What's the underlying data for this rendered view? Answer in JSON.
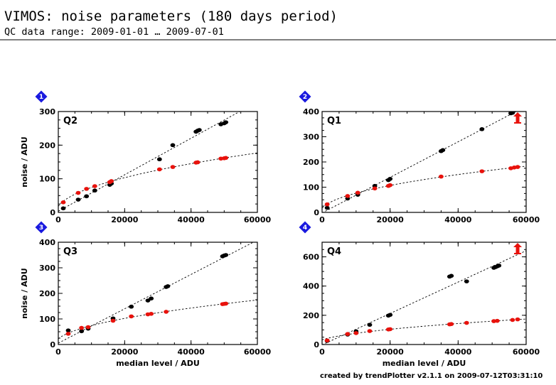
{
  "header": {
    "title": "VIMOS: noise parameters (180 days period)",
    "subtitle": "QC data range: 2009-01-01 … 2009-07-01"
  },
  "footer": "created by trendPlotter v2.1.1 on 2009-07-12T03:31:10",
  "colors": {
    "series_black": "#000000",
    "series_red": "#e8120c",
    "badge": "#1a1adf",
    "fit_line": "#000000"
  },
  "chart_data": [
    {
      "type": "scatter",
      "badge": "1",
      "panel_label": "Q2",
      "xlim": [
        0,
        60000
      ],
      "ylim": [
        0,
        300
      ],
      "xticks": [
        "0",
        "20000",
        "40000",
        "60000"
      ],
      "yticks": [
        "0",
        "100",
        "200",
        "300"
      ],
      "xlabel": "",
      "ylabel": "noise / ADU",
      "series": [
        {
          "color": "black",
          "points": [
            [
              1500,
              12
            ],
            [
              6000,
              38
            ],
            [
              8500,
              48
            ],
            [
              11000,
              65
            ],
            [
              15500,
              82
            ],
            [
              16000,
              86
            ],
            [
              30500,
              158
            ],
            [
              34500,
              200
            ],
            [
              41500,
              240
            ],
            [
              42000,
              243
            ],
            [
              42500,
              245
            ],
            [
              49000,
              262
            ],
            [
              50000,
              265
            ],
            [
              50500,
              268
            ]
          ]
        },
        {
          "color": "red",
          "points": [
            [
              1500,
              30
            ],
            [
              6000,
              58
            ],
            [
              8500,
              70
            ],
            [
              11000,
              78
            ],
            [
              15500,
              90
            ],
            [
              16000,
              93
            ],
            [
              30500,
              128
            ],
            [
              34500,
              135
            ],
            [
              41500,
              148
            ],
            [
              42000,
              149
            ],
            [
              49000,
              160
            ],
            [
              50000,
              161
            ],
            [
              50500,
              162
            ]
          ]
        }
      ]
    },
    {
      "type": "scatter",
      "badge": "2",
      "panel_label": "Q1",
      "xlim": [
        0,
        60000
      ],
      "ylim": [
        0,
        400
      ],
      "xticks": [
        "0",
        "20000",
        "40000",
        "60000"
      ],
      "yticks": [
        "0",
        "100",
        "200",
        "300",
        "400"
      ],
      "xlabel": "",
      "ylabel": "",
      "series": [
        {
          "color": "black",
          "points": [
            [
              1500,
              18
            ],
            [
              7500,
              55
            ],
            [
              10500,
              70
            ],
            [
              15500,
              105
            ],
            [
              19500,
              128
            ],
            [
              20000,
              133
            ],
            [
              35000,
              243
            ],
            [
              35500,
              247
            ],
            [
              47000,
              330
            ],
            [
              55500,
              393
            ],
            [
              56000,
              395
            ]
          ]
        },
        {
          "color": "red",
          "points": [
            [
              1500,
              32
            ],
            [
              7500,
              65
            ],
            [
              10500,
              78
            ],
            [
              15500,
              95
            ],
            [
              19500,
              105
            ],
            [
              20000,
              108
            ],
            [
              35000,
              142
            ],
            [
              47000,
              163
            ],
            [
              55500,
              175
            ],
            [
              56500,
              178
            ],
            [
              57500,
              180
            ]
          ]
        }
      ],
      "annotations": [
        {
          "type": "up-arrow",
          "x": 57500,
          "color": "red"
        }
      ]
    },
    {
      "type": "scatter",
      "badge": "3",
      "panel_label": "Q3",
      "xlim": [
        0,
        60000
      ],
      "ylim": [
        0,
        400
      ],
      "xticks": [
        "0",
        "20000",
        "40000",
        "60000"
      ],
      "yticks": [
        "0",
        "100",
        "200",
        "300",
        "400"
      ],
      "xlabel": "median level / ADU",
      "ylabel": "noise / ADU",
      "series": [
        {
          "color": "black",
          "points": [
            [
              3000,
              55
            ],
            [
              7000,
              52
            ],
            [
              9000,
              62
            ],
            [
              16500,
              102
            ],
            [
              22000,
              148
            ],
            [
              27000,
              172
            ],
            [
              28000,
              180
            ],
            [
              32500,
              225
            ],
            [
              33000,
              228
            ],
            [
              49500,
              345
            ],
            [
              50000,
              348
            ],
            [
              50500,
              350
            ]
          ]
        },
        {
          "color": "red",
          "points": [
            [
              3000,
              42
            ],
            [
              7000,
              65
            ],
            [
              9000,
              68
            ],
            [
              16500,
              93
            ],
            [
              22000,
              110
            ],
            [
              27000,
              118
            ],
            [
              28000,
              120
            ],
            [
              32500,
              128
            ],
            [
              49500,
              158
            ],
            [
              50000,
              159
            ],
            [
              50500,
              160
            ]
          ]
        }
      ]
    },
    {
      "type": "scatter",
      "badge": "4",
      "panel_label": "Q4",
      "xlim": [
        0,
        60000
      ],
      "ylim": [
        0,
        700
      ],
      "xticks": [
        "0",
        "20000",
        "40000",
        "60000"
      ],
      "yticks": [
        "0",
        "200",
        "400",
        "600"
      ],
      "xlabel": "median level / ADU",
      "ylabel": "",
      "series": [
        {
          "color": "black",
          "points": [
            [
              1500,
              25
            ],
            [
              7500,
              68
            ],
            [
              10000,
              90
            ],
            [
              14000,
              135
            ],
            [
              19500,
              198
            ],
            [
              20000,
              203
            ],
            [
              37500,
              465
            ],
            [
              38000,
              470
            ],
            [
              42500,
              432
            ],
            [
              50500,
              525
            ],
            [
              51000,
              530
            ],
            [
              51500,
              535
            ],
            [
              52000,
              540
            ]
          ]
        },
        {
          "color": "red",
          "points": [
            [
              1500,
              28
            ],
            [
              7500,
              72
            ],
            [
              10000,
              78
            ],
            [
              14000,
              92
            ],
            [
              19500,
              103
            ],
            [
              20000,
              105
            ],
            [
              37500,
              138
            ],
            [
              38000,
              140
            ],
            [
              42500,
              148
            ],
            [
              50500,
              160
            ],
            [
              51500,
              162
            ],
            [
              56000,
              168
            ],
            [
              57500,
              172
            ]
          ]
        }
      ],
      "annotations": [
        {
          "type": "up-arrow",
          "x": 57500,
          "color": "red"
        }
      ]
    }
  ]
}
